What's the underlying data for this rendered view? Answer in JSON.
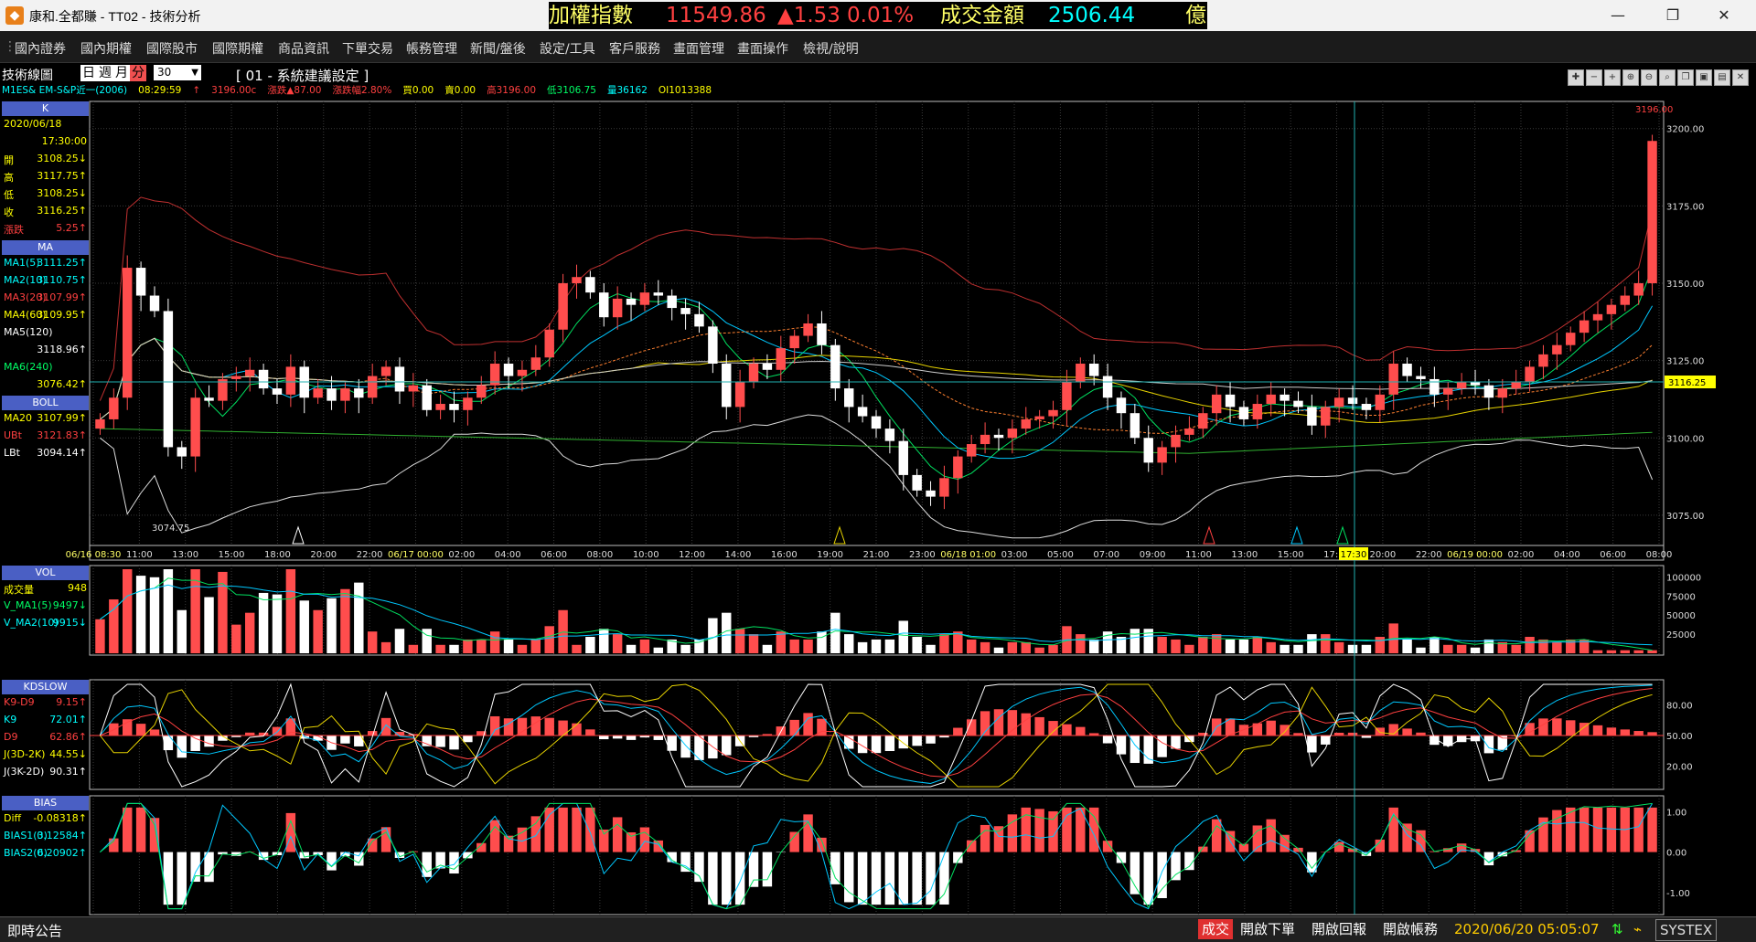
{
  "window": {
    "title": "康和.全都賺 - TT02 - 技術分析",
    "logo": "app-logo-icon"
  },
  "ticker": {
    "label": "加權指數",
    "index": "11549.86",
    "change": "▲1.53",
    "change_pct": "0.01%",
    "turnover_label": "成交金額",
    "turnover": "2506.44",
    "unit": "億"
  },
  "menu": [
    "國內證券",
    "國內期權",
    "國際股市",
    "國際期權",
    "商品資訊",
    "下單交易",
    "帳務管理",
    "新聞/盤後",
    "設定/工具",
    "客戶服務",
    "畫面管理",
    "畫面操作",
    "檢視/說明"
  ],
  "toolbar": {
    "label": "技術線圖",
    "periods": [
      "日",
      "週",
      "月",
      "分"
    ],
    "selected_period": "分",
    "interval": "30",
    "setting": "[ 01 - 系統建議設定 ]"
  },
  "quote": {
    "symbol": "M1ES& EM-S&P近一(2006)",
    "time": "08:29:59",
    "arrow": "↑",
    "price": "3196.00c",
    "change": "漲跌▲87.00",
    "change_pct": "漲跌幅2.80%",
    "buy": "買0.00",
    "sell": "賣0.00",
    "high": "高3196.00",
    "low": "低3106.75",
    "volume": "量36162",
    "oi": "OI1013388"
  },
  "k_panel": {
    "title": "K",
    "date": "2020/06/18",
    "time": "17:30:00",
    "rows": [
      {
        "k": "開",
        "v": "3108.25↓"
      },
      {
        "k": "高",
        "v": "3117.75↑"
      },
      {
        "k": "低",
        "v": "3108.25↓"
      },
      {
        "k": "收",
        "v": "3116.25↑"
      },
      {
        "k": "漲跌",
        "v": "5.25↑"
      }
    ]
  },
  "ma_panel": {
    "title": "MA",
    "rows": [
      {
        "k": "MA1(5)",
        "v": "3111.25↑",
        "color": "#00ffff"
      },
      {
        "k": "MA2(10)",
        "v": "3110.75↑",
        "color": "#00ffff"
      },
      {
        "k": "MA3(20)",
        "v": "3107.99↑",
        "color": "#ff4040"
      },
      {
        "k": "MA4(60)",
        "v": "3109.95↑",
        "color": "#ffff00"
      },
      {
        "k": "MA5(120)",
        "v": "",
        "color": "#ffffff"
      },
      {
        "k": "",
        "v": "3118.96↑",
        "color": "#ffffff"
      },
      {
        "k": "MA6(240)",
        "v": "",
        "color": "#00ff66"
      },
      {
        "k": "",
        "v": "3076.42↑",
        "color": "#00ff66"
      }
    ]
  },
  "boll_panel": {
    "title": "BOLL",
    "rows": [
      {
        "k": "MA20",
        "v": "3107.99↑",
        "color": "#ffff00"
      },
      {
        "k": "UBt",
        "v": "3121.83↑",
        "color": "#ff4040"
      },
      {
        "k": "LBt",
        "v": "3094.14↑",
        "color": "#ffffff"
      }
    ]
  },
  "vol_panel": {
    "title": "VOL",
    "rows": [
      {
        "k": "成交量",
        "v": "948",
        "color": "#ffff00"
      },
      {
        "k": "V_MA1(5)",
        "v": "9497↓",
        "color": "#00ff66"
      },
      {
        "k": "V_MA2(10)",
        "v": "9915↓",
        "color": "#00ffff"
      }
    ]
  },
  "kd_panel": {
    "title": "KDSLOW",
    "rows": [
      {
        "k": "K9-D9",
        "v": "9.15↑",
        "color": "#ff4040"
      },
      {
        "k": "K9",
        "v": "72.01↑",
        "color": "#00ffff"
      },
      {
        "k": "D9",
        "v": "62.86↑",
        "color": "#ff4040"
      },
      {
        "k": "J(3D-2K)",
        "v": "44.55↓",
        "color": "#ffff00"
      },
      {
        "k": "J(3K-2D)",
        "v": "90.31↑",
        "color": "#ffffff"
      }
    ]
  },
  "bias_panel": {
    "title": "BIAS",
    "rows": [
      {
        "k": "Diff",
        "v": "-0.08318↑",
        "color": "#ffff00"
      },
      {
        "k": "BIAS1(3)",
        "v": "0.12584↑",
        "color": "#00ffff"
      },
      {
        "k": "BIAS2(6)",
        "v": "0.20902↑",
        "color": "#00ffff"
      }
    ]
  },
  "price_axis": [
    "3200.00",
    "3175.00",
    "3150.00",
    "3125.00",
    "3100.00",
    "3075.00"
  ],
  "vol_axis": [
    "100000",
    "75000",
    "50000",
    "25000"
  ],
  "kd_axis": [
    "80.00",
    "50.00",
    "20.00"
  ],
  "bias_axis": [
    "1.00",
    "0.00",
    "-1.00"
  ],
  "time_axis": [
    "06/16 08:30",
    "11:00",
    "13:00",
    "15:00",
    "18:00",
    "20:00",
    "22:00",
    "06/17 00:00",
    "02:00",
    "04:00",
    "06:00",
    "08:00",
    "10:00",
    "12:00",
    "14:00",
    "16:00",
    "19:00",
    "21:00",
    "23:00",
    "06/18 01:00",
    "03:00",
    "05:00",
    "07:00",
    "09:00",
    "11:00",
    "13:00",
    "15:00",
    "17:30",
    "20:00",
    "22:00",
    "06/19 00:00",
    "02:00",
    "04:00",
    "06:00",
    "08:00"
  ],
  "cursor_time": "17:30",
  "labels": {
    "high_price": "3196.00",
    "low_price": "3074.75",
    "cursor_price": "3116.25"
  },
  "chart_data": {
    "type": "candlestick",
    "price_range": [
      3067,
      3207
    ],
    "closes": [
      3106,
      3113,
      3155,
      3146,
      3141,
      3097,
      3094,
      3113,
      3112,
      3119,
      3120,
      3122,
      3116,
      3114,
      3123,
      3113,
      3116,
      3112,
      3116,
      3113,
      3120,
      3123,
      3115,
      3117,
      3109,
      3111,
      3109,
      3113,
      3117,
      3124,
      3120,
      3122,
      3126,
      3135,
      3150,
      3152,
      3147,
      3139,
      3145,
      3143,
      3147,
      3146,
      3142,
      3140,
      3136,
      3124,
      3110,
      3118,
      3124,
      3122,
      3129,
      3133,
      3137,
      3130,
      3116,
      3110,
      3107,
      3103,
      3099,
      3088,
      3083,
      3081,
      3087,
      3094,
      3098,
      3101,
      3100,
      3103,
      3106,
      3107,
      3109,
      3118,
      3124,
      3120,
      3113,
      3108,
      3100,
      3092,
      3097,
      3101,
      3103,
      3108,
      3114,
      3110,
      3106,
      3111,
      3114,
      3112,
      3110,
      3104,
      3110,
      3113,
      3111,
      3109,
      3114,
      3124,
      3120,
      3119,
      3114,
      3116,
      3118,
      3117,
      3113,
      3116,
      3118,
      3123,
      3127,
      3130,
      3134,
      3138,
      3140,
      3143,
      3146,
      3150,
      3196
    ],
    "vol_max": 110000,
    "bias_range": [
      -1.5,
      1.3
    ]
  }
}
